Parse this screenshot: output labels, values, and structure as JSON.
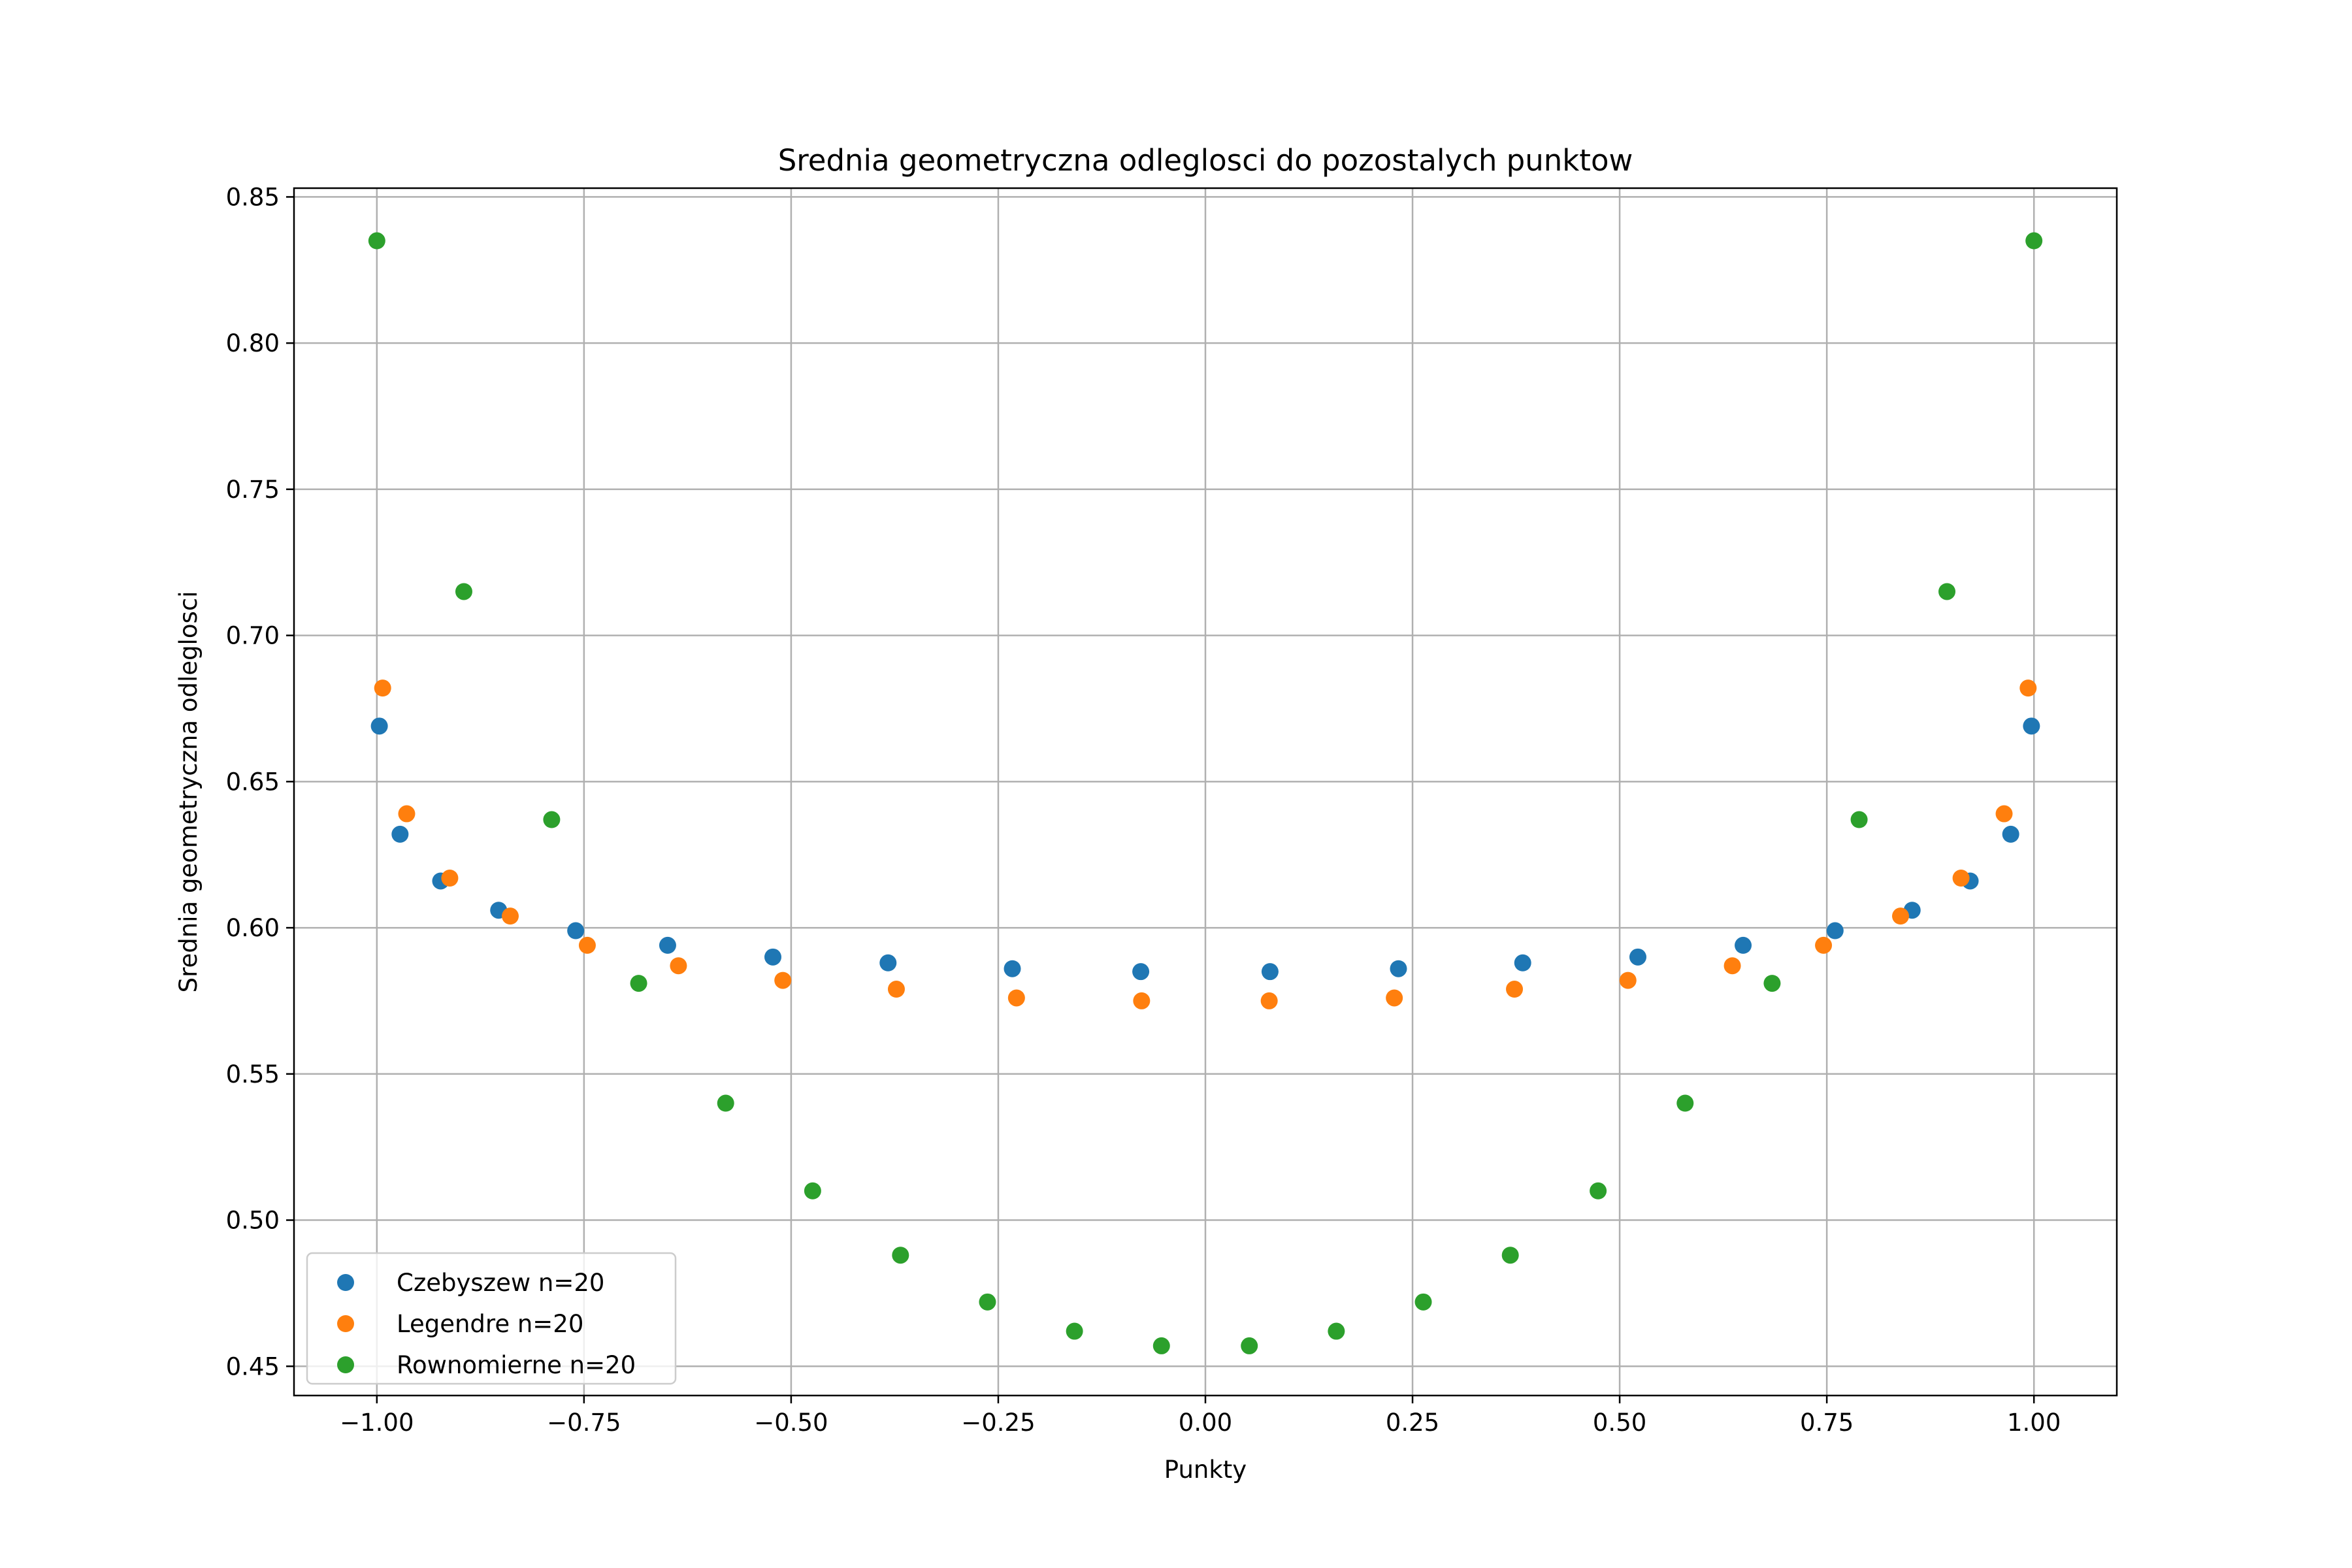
{
  "chart_data": {
    "type": "scatter",
    "title": "Srednia geometryczna odleglosci do pozostalych punktow",
    "xlabel": "Punkty",
    "ylabel": "Srednia geometryczna odleglosci",
    "xlim": [
      -1.1,
      1.1
    ],
    "ylim": [
      0.44,
      0.853
    ],
    "xticks": [
      -1.0,
      -0.75,
      -0.5,
      -0.25,
      0.0,
      0.25,
      0.5,
      0.75,
      1.0
    ],
    "xtick_labels": [
      "−1.00",
      "−0.75",
      "−0.50",
      "−0.25",
      "0.00",
      "0.25",
      "0.50",
      "0.75",
      "1.00"
    ],
    "yticks": [
      0.45,
      0.5,
      0.55,
      0.6,
      0.65,
      0.7,
      0.75,
      0.8,
      0.85
    ],
    "ytick_labels": [
      "0.45",
      "0.50",
      "0.55",
      "0.60",
      "0.65",
      "0.70",
      "0.75",
      "0.80",
      "0.85"
    ],
    "grid": true,
    "legend_position": "lower-left",
    "series": [
      {
        "name": "Czebyszew n=20",
        "color": "#1f77b4",
        "x": [
          -0.997,
          -0.972,
          -0.923,
          -0.853,
          -0.76,
          -0.649,
          -0.522,
          -0.383,
          -0.233,
          -0.078,
          0.078,
          0.233,
          0.383,
          0.522,
          0.649,
          0.76,
          0.853,
          0.923,
          0.972,
          0.997
        ],
        "y": [
          0.669,
          0.632,
          0.616,
          0.606,
          0.599,
          0.594,
          0.59,
          0.588,
          0.586,
          0.585,
          0.585,
          0.586,
          0.588,
          0.59,
          0.594,
          0.599,
          0.606,
          0.616,
          0.632,
          0.669
        ]
      },
      {
        "name": "Legendre n=20",
        "color": "#ff7f0e",
        "x": [
          -0.993,
          -0.964,
          -0.912,
          -0.839,
          -0.746,
          -0.636,
          -0.51,
          -0.373,
          -0.228,
          -0.077,
          0.077,
          0.228,
          0.373,
          0.51,
          0.636,
          0.746,
          0.839,
          0.912,
          0.964,
          0.993
        ],
        "y": [
          0.682,
          0.639,
          0.617,
          0.604,
          0.594,
          0.587,
          0.582,
          0.579,
          0.576,
          0.575,
          0.575,
          0.576,
          0.579,
          0.582,
          0.587,
          0.594,
          0.604,
          0.617,
          0.639,
          0.682
        ]
      },
      {
        "name": "Rownomierne n=20",
        "color": "#2ca02c",
        "x": [
          -1.0,
          -0.895,
          -0.789,
          -0.684,
          -0.579,
          -0.474,
          -0.368,
          -0.263,
          -0.158,
          -0.053,
          0.053,
          0.158,
          0.263,
          0.368,
          0.474,
          0.579,
          0.684,
          0.789,
          0.895,
          1.0
        ],
        "y": [
          0.835,
          0.715,
          0.637,
          0.581,
          0.54,
          0.51,
          0.488,
          0.472,
          0.462,
          0.457,
          0.457,
          0.462,
          0.472,
          0.488,
          0.51,
          0.54,
          0.581,
          0.637,
          0.715,
          0.835
        ]
      }
    ]
  }
}
